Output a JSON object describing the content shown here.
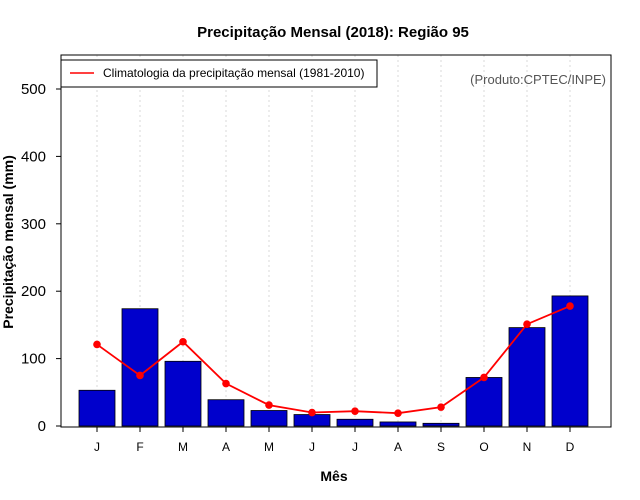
{
  "chart_data": {
    "type": "bar",
    "title": "Precipitação Mensal (2018): Região 95",
    "xlabel": "Mês",
    "ylabel": "Precipitação mensal (mm)",
    "categories": [
      "J",
      "F",
      "M",
      "A",
      "M",
      "J",
      "J",
      "A",
      "S",
      "O",
      "N",
      "D"
    ],
    "ylim": [
      0,
      540
    ],
    "yticks": [
      0,
      100,
      200,
      300,
      400,
      500
    ],
    "grid": "vertical-dotted",
    "series": [
      {
        "name": "Precipitação mensal (2018)",
        "kind": "bar",
        "color": "#0000cc",
        "values": [
          53,
          174,
          96,
          39,
          23,
          17,
          10,
          6,
          4,
          72,
          146,
          193
        ]
      },
      {
        "name": "Climatologia da precipitação mensal (1981-2010)",
        "kind": "line",
        "color": "#ff0000",
        "values": [
          121,
          75,
          125,
          63,
          31,
          20,
          22,
          19,
          28,
          72,
          151,
          178
        ]
      }
    ],
    "legend": {
      "position": "top-left",
      "entries": [
        "Climatologia da precipitação mensal (1981-2010)"
      ]
    },
    "annotation": "(Produto:CPTEC/INPE)"
  }
}
